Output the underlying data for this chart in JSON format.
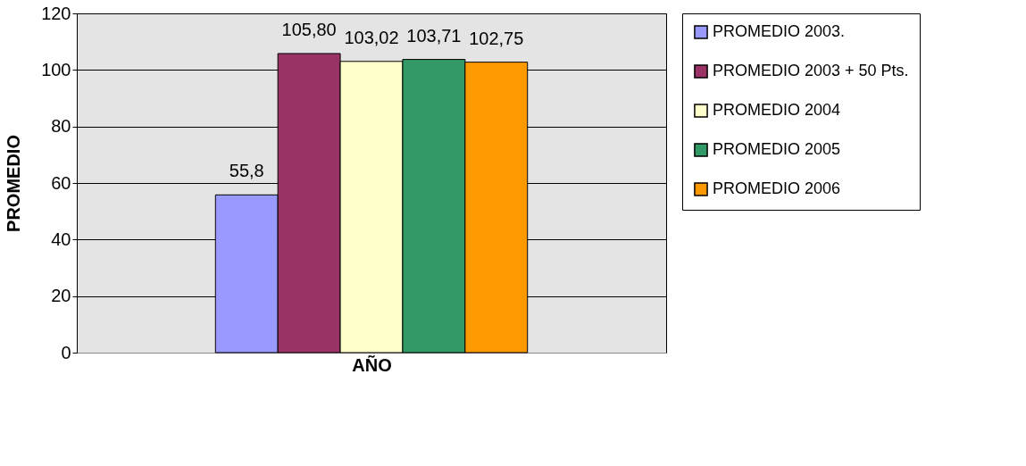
{
  "chart_data": {
    "type": "bar",
    "xlabel": "AÑO",
    "ylabel": "PROMEDIO",
    "categories": [
      null
    ],
    "series": [
      {
        "name": "PROMEDIO 2003.",
        "color": "#9999ff",
        "values": [
          55.8
        ],
        "value_labels": [
          "55,8"
        ]
      },
      {
        "name": "PROMEDIO 2003 + 50 Pts.",
        "color": "#993366",
        "values": [
          105.8
        ],
        "value_labels": [
          "105,80"
        ]
      },
      {
        "name": "PROMEDIO 2004",
        "color": "#ffffcc",
        "values": [
          103.02
        ],
        "value_labels": [
          "103,02"
        ]
      },
      {
        "name": "PROMEDIO 2005",
        "color": "#339966",
        "values": [
          103.71
        ],
        "value_labels": [
          "103,71"
        ]
      },
      {
        "name": "PROMEDIO 2006",
        "color": "#ff9900",
        "values": [
          102.75
        ],
        "value_labels": [
          "102,75"
        ]
      }
    ],
    "ylim": [
      0,
      120
    ],
    "yticks": [
      0,
      20,
      40,
      60,
      80,
      100,
      120
    ],
    "grid": "y",
    "legend": "right"
  }
}
